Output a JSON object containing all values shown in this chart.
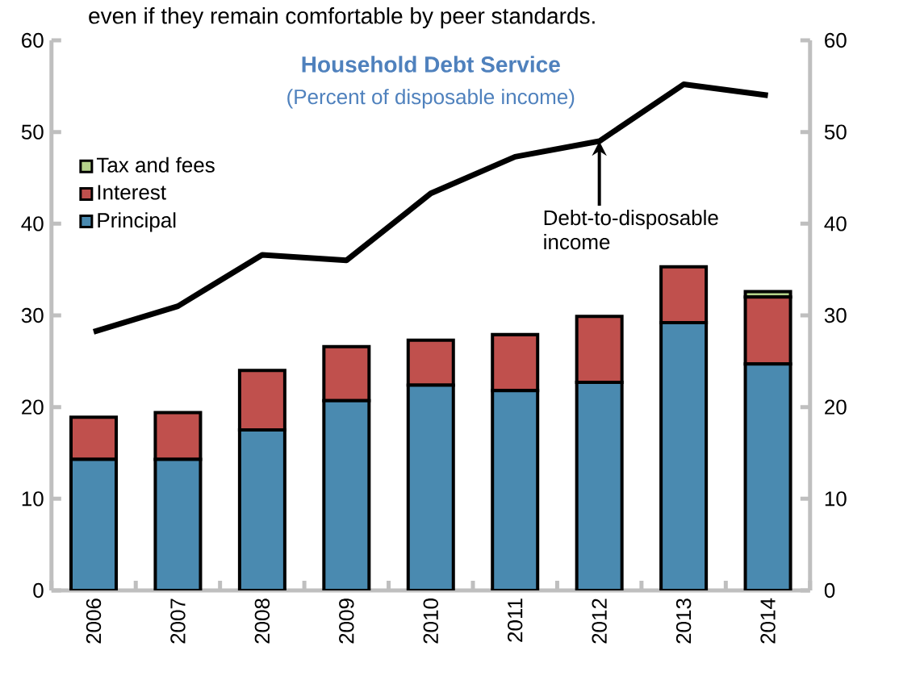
{
  "chart_data": {
    "type": "bar",
    "stacked": true,
    "title": "Household Debt Service",
    "subtitle": "(Percent of disposable income)",
    "categories": [
      "2006",
      "2007",
      "2008",
      "2009",
      "2010",
      "2011",
      "2012",
      "2013",
      "2014"
    ],
    "series": [
      {
        "name": "Principal",
        "color": "#4a8ab0",
        "values": [
          14.3,
          14.3,
          17.5,
          20.7,
          22.4,
          21.8,
          22.7,
          29.2,
          24.7
        ]
      },
      {
        "name": "Interest",
        "color": "#c0504d",
        "values": [
          4.6,
          5.1,
          6.5,
          5.9,
          4.9,
          6.1,
          7.2,
          6.1,
          7.3
        ]
      },
      {
        "name": "Tax and fees",
        "color": "#b5d38a",
        "values": [
          null,
          null,
          null,
          null,
          null,
          null,
          null,
          null,
          0.6
        ]
      },
      {
        "type": "line",
        "axis": "y2",
        "color": "#000000",
        "values": [
          28.2,
          31.0,
          36.6,
          36.0,
          43.3,
          47.3,
          49.0,
          55.2,
          54.0
        ]
      }
    ],
    "ylim": [
      0,
      60
    ],
    "yticks": [
      0,
      10,
      20,
      30,
      40,
      50,
      60
    ],
    "y2lim": [
      0,
      60
    ],
    "y2ticks": [
      0,
      10,
      20,
      30,
      40,
      50,
      60
    ],
    "legend": "top left",
    "annotations": [
      {
        "text": "Debt-to-disposable income",
        "x": "2012",
        "y": 49.0
      },
      "even if they remain comfortable by peer standards."
    ]
  }
}
